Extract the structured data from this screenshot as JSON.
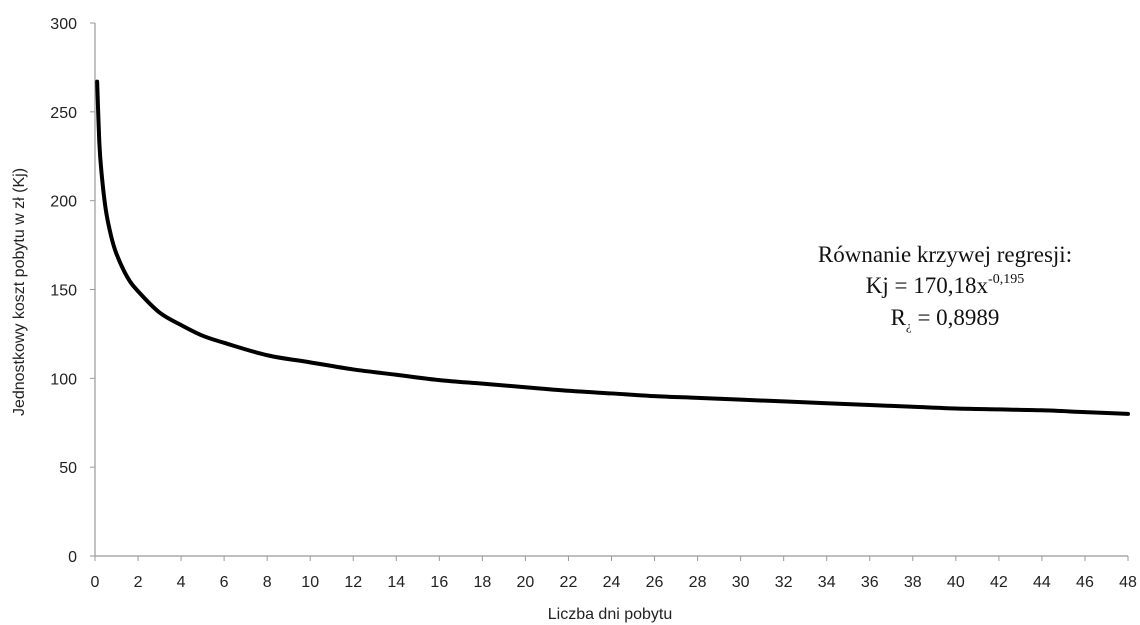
{
  "chart_data": {
    "type": "line",
    "xlabel": "Liczba dni pobytu",
    "ylabel": "Jednostkowy koszt pobytu w zł (Kj)",
    "xlim": [
      0,
      48
    ],
    "ylim": [
      0,
      300
    ],
    "x_ticks": [
      0,
      2,
      4,
      6,
      8,
      10,
      12,
      14,
      16,
      18,
      20,
      22,
      24,
      26,
      28,
      30,
      32,
      34,
      36,
      38,
      40,
      42,
      44,
      46,
      48
    ],
    "y_ticks": [
      0,
      50,
      100,
      150,
      200,
      250,
      300
    ],
    "grid": false,
    "series": [
      {
        "x": [
          0.1,
          0.2,
          0.3,
          0.5,
          0.75,
          1,
          1.5,
          2,
          3,
          4,
          5,
          6,
          8,
          10,
          12,
          14,
          16,
          18,
          20,
          22,
          24,
          26,
          28,
          30,
          32,
          34,
          36,
          38,
          40,
          42,
          44,
          46,
          48
        ],
        "y": [
          267,
          233,
          216,
          195,
          180,
          170,
          157,
          149,
          137,
          130,
          124,
          120,
          113,
          109,
          105,
          102,
          99,
          97,
          95,
          93,
          91.5,
          90,
          89,
          88,
          87,
          86,
          85,
          84,
          83,
          82.5,
          82,
          81,
          80
        ]
      }
    ],
    "annotation": {
      "title": "Równanie krzywej regresji:",
      "equation_prefix": "Kj = 170,18x",
      "equation_exponent": "-0,195",
      "r_label": "R",
      "r_sub": "¿",
      "r_value": " = 0,8989"
    }
  }
}
